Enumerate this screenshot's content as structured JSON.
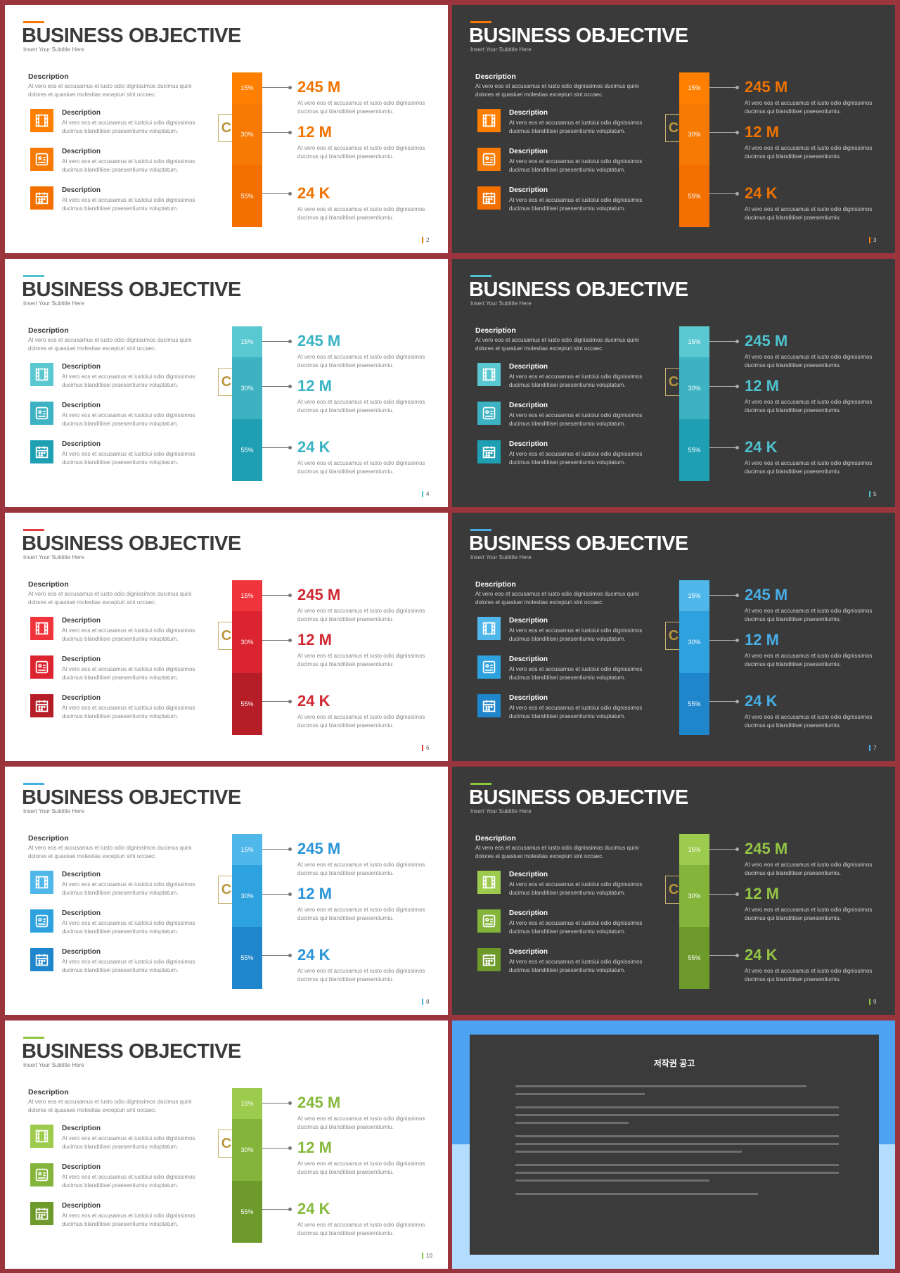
{
  "common": {
    "title": "BUSINESS OBJECTIVE",
    "subtitle": "Insert Your Subtitle Here",
    "desc_head": "Description",
    "desc_text": "At vero eos et accusamus  et iusto odio dignissimos ducimus quini dolores et quasiuei molestias excepturi sint occaec.",
    "item_head": "Description",
    "item_text": "At vero eos et accusamus  et iustoiui odio dignissimos ducimus blanditiisei praesentiumiu voluptatum.",
    "val_text": "At vero eos et accusamus  et iusto odio dignissimos ducimus qui blanditiisei praesentiumiu.",
    "segments": [
      "15%",
      "30%",
      "55%"
    ],
    "values": [
      "245 M",
      "12 M",
      "24 K"
    ],
    "logo_letter": "C",
    "icons": [
      "film-icon",
      "id-card-icon",
      "calendar-icon"
    ]
  },
  "slides": [
    {
      "page": "2",
      "theme": "light",
      "colors": [
        "#ff7f00",
        "#f77a05",
        "#f26f00"
      ],
      "accent": "#f47a00",
      "val_color": "#f07300"
    },
    {
      "page": "3",
      "theme": "dark",
      "colors": [
        "#ff7f00",
        "#f77a05",
        "#f26f00"
      ],
      "accent": "#f47a00",
      "val_color": "#f07300"
    },
    {
      "page": "4",
      "theme": "light",
      "colors": [
        "#5ac8d1",
        "#3cb2c3",
        "#1f9fb4"
      ],
      "accent": "#4ec3cf",
      "val_color": "#39b3c4"
    },
    {
      "page": "5",
      "theme": "dark",
      "colors": [
        "#5ac8d1",
        "#3cb2c3",
        "#1f9fb4"
      ],
      "accent": "#4ec3cf",
      "val_color": "#4ec3cf"
    },
    {
      "page": "6",
      "theme": "light",
      "colors": [
        "#f0343c",
        "#dc2430",
        "#b51e27"
      ],
      "accent": "#e33a3f",
      "val_color": "#cf2831"
    },
    {
      "page": "7",
      "theme": "dark",
      "colors": [
        "#4fb7ea",
        "#2ea1df",
        "#1f86cb"
      ],
      "accent": "#47aee6",
      "val_color": "#47aee6"
    },
    {
      "page": "8",
      "theme": "light",
      "colors": [
        "#4fb7ea",
        "#2ea1df",
        "#1f86cb"
      ],
      "accent": "#47aee6",
      "val_color": "#2a95d8"
    },
    {
      "page": "9",
      "theme": "dark",
      "colors": [
        "#9dcb4d",
        "#84b53a",
        "#6d9a2a"
      ],
      "accent": "#8cc63f",
      "val_color": "#94c545"
    },
    {
      "page": "10",
      "theme": "light",
      "colors": [
        "#9dcb4d",
        "#84b53a",
        "#6d9a2a"
      ],
      "accent": "#8cc63f",
      "val_color": "#86b93c"
    }
  ],
  "notice": {
    "title": "저작권 공고"
  }
}
